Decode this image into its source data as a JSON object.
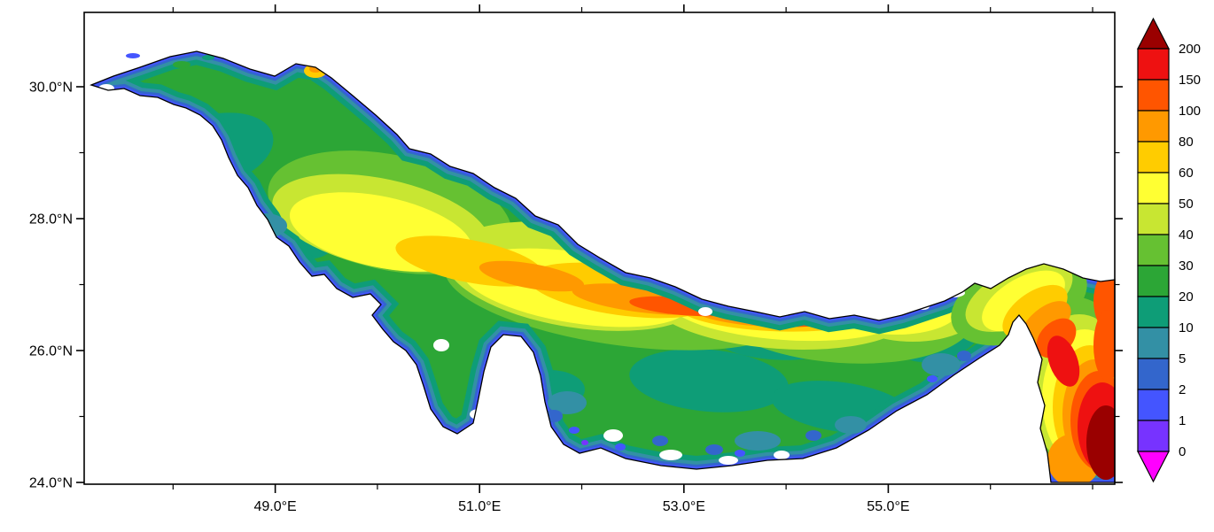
{
  "figure": {
    "title": "",
    "background": "#FFFFFF"
  },
  "axes": {
    "x": {
      "major": [
        {
          "deg": 49,
          "label": "49.0°E"
        },
        {
          "deg": 51,
          "label": "51.0°E"
        },
        {
          "deg": 53,
          "label": "53.0°E"
        },
        {
          "deg": 55,
          "label": "55.0°E"
        }
      ],
      "minor_deg": [
        48,
        50,
        52,
        54,
        56,
        57
      ]
    },
    "y": {
      "major": [
        {
          "deg": 30,
          "label": "30.0°N"
        },
        {
          "deg": 28,
          "label": "28.0°N"
        },
        {
          "deg": 26,
          "label": "26.0°N"
        },
        {
          "deg": 24,
          "label": "24.0°N"
        }
      ],
      "minor_deg": [
        29,
        27,
        25
      ]
    }
  },
  "chart_data": {
    "type": "heatmap",
    "subtype": "filled contour map over a coastline (Persian Gulf, Strait of Hormuz and Gulf of Oman basin shape)",
    "title": "",
    "xlabel": "",
    "ylabel": "",
    "x_tick_labels": [
      "49.0°E",
      "51.0°E",
      "53.0°E",
      "55.0°E"
    ],
    "y_tick_labels": [
      "30.0°N",
      "28.0°N",
      "26.0°N",
      "24.0°N"
    ],
    "x_range_approx_deg_e": [
      47.1,
      57.2
    ],
    "y_range_approx_deg_n": [
      24.0,
      31.1
    ],
    "grid": false,
    "colorbar": {
      "orientation": "vertical-right",
      "labels_top_to_bottom": [
        "200",
        "150",
        "100",
        "80",
        "60",
        "50",
        "40",
        "30",
        "20",
        "10",
        "5",
        "2",
        "1",
        "0"
      ],
      "arrow_top_color": "#9A0000",
      "arrow_bottom_color": "#FF00FF",
      "block_colors_top_to_bottom": [
        "#EE1111",
        "#FF5500",
        "#FF9900",
        "#FFCC00",
        "#FFFF33",
        "#C8E632",
        "#66C132",
        "#2CA636",
        "#0E9D77",
        "#3390A5",
        "#3366CC",
        "#4455FF",
        "#7733FF"
      ],
      "levels": [
        {
          "key": "under0",
          "range": "< 0",
          "color": "#FF00FF"
        },
        {
          "key": "0-1",
          "range": "0-1",
          "color": "#7733FF"
        },
        {
          "key": "1-2",
          "range": "1-2",
          "color": "#4455FF"
        },
        {
          "key": "2-5",
          "range": "2-5",
          "color": "#3366CC"
        },
        {
          "key": "5-10",
          "range": "5-10",
          "color": "#3390A5"
        },
        {
          "key": "10-20",
          "range": "10-20",
          "color": "#0E9D77"
        },
        {
          "key": "20-30",
          "range": "20-30",
          "color": "#2CA636"
        },
        {
          "key": "30-40",
          "range": "30-40",
          "color": "#66C132"
        },
        {
          "key": "40-50",
          "range": "40-50",
          "color": "#C8E632"
        },
        {
          "key": "50-60",
          "range": "50-60",
          "color": "#FFFF33"
        },
        {
          "key": "60-80",
          "range": "60-80",
          "color": "#FFCC00"
        },
        {
          "key": "80-100",
          "range": "80-100",
          "color": "#FF9900"
        },
        {
          "key": "100-150",
          "range": "100-150",
          "color": "#FF5500"
        },
        {
          "key": "150-200",
          "range": "150-200",
          "color": "#EE1111"
        },
        {
          "key": "over200",
          "range": "> 200",
          "color": "#9A0000"
        }
      ]
    },
    "features": [
      {
        "area": "broad basin interior",
        "value_range": "20-40"
      },
      {
        "area": "central axial trough running WNW-ESE from ~50.5°E to ~56°E along ~27.5-26.3°N",
        "value_range": "50-150"
      },
      {
        "area": "coastal fringes, around Qatar and Gulf of Salwa",
        "value_range": "0-10"
      },
      {
        "area": "Strait of Hormuz channel (~56.3°E, 26.5°N)",
        "value_range": "60-150"
      },
      {
        "area": "Gulf of Oman, bottom-right corner of map",
        "value_range": "150 to > 200"
      },
      {
        "area": "small isolated spot on north shore (~49.4°E, 30.3°N)",
        "value_range": "60-100"
      },
      {
        "area": "narrow strip off west coast south of Bahrain (~50.3°E, 25.0°N)",
        "value_range": "50-80"
      },
      {
        "area": "white interior patches (islands / no data)",
        "value_range": "none"
      }
    ],
    "sampled_grid": {
      "note": "Approximate values read from the fill colors; null = land or no data.",
      "lon_e": [
        48,
        49,
        50,
        51,
        52,
        53,
        54,
        55,
        56,
        57
      ],
      "lat_n": [
        30.0,
        29.0,
        28.0,
        27.0,
        26.0,
        25.0,
        24.5
      ],
      "values": [
        [
          20,
          30,
          20,
          null,
          null,
          null,
          null,
          null,
          null,
          null
        ],
        [
          10,
          30,
          40,
          null,
          null,
          null,
          null,
          null,
          null,
          null
        ],
        [
          null,
          20,
          50,
          60,
          30,
          null,
          null,
          null,
          null,
          null
        ],
        [
          null,
          5,
          30,
          60,
          80,
          80,
          40,
          30,
          50,
          100
        ],
        [
          null,
          null,
          10,
          20,
          30,
          40,
          20,
          20,
          30,
          150
        ],
        [
          null,
          null,
          2,
          null,
          10,
          20,
          20,
          10,
          null,
          250
        ],
        [
          null,
          null,
          null,
          2,
          5,
          5,
          10,
          5,
          null,
          250
        ]
      ]
    },
    "annotations_note": "No title, units or variable name is printed in the figure; value bands are defined only by the colorbar labels."
  },
  "colors": {
    "coastline": "#000000",
    "frame": "#000000",
    "no_data": "#FFFFFF"
  }
}
